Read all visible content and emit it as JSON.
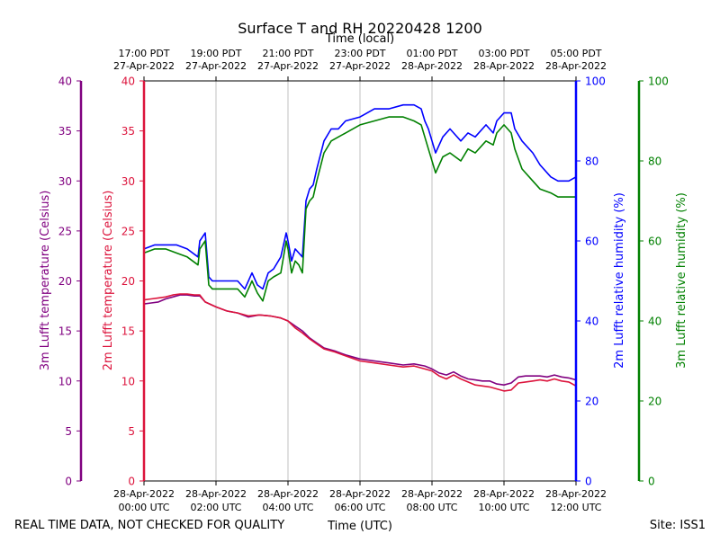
{
  "chart_data": {
    "type": "line",
    "title": "Surface T and RH 20220428 1200",
    "top_axis_label": "Time (local)",
    "xlabel": "Time (UTC)",
    "footer_left": "REAL TIME DATA, NOT CHECKED FOR QUALITY",
    "footer_right": "Site: ISS1",
    "x_range_hours": [
      0,
      12
    ],
    "bottom_ticks": [
      {
        "hour": 0,
        "line1": "28-Apr-2022",
        "line2": "00:00 UTC"
      },
      {
        "hour": 2,
        "line1": "28-Apr-2022",
        "line2": "02:00 UTC"
      },
      {
        "hour": 4,
        "line1": "28-Apr-2022",
        "line2": "04:00 UTC"
      },
      {
        "hour": 6,
        "line1": "28-Apr-2022",
        "line2": "06:00 UTC"
      },
      {
        "hour": 8,
        "line1": "28-Apr-2022",
        "line2": "08:00 UTC"
      },
      {
        "hour": 10,
        "line1": "28-Apr-2022",
        "line2": "10:00 UTC"
      },
      {
        "hour": 12,
        "line1": "28-Apr-2022",
        "line2": "12:00 UTC"
      }
    ],
    "top_ticks": [
      {
        "hour": 0,
        "line1": "17:00 PDT",
        "line2": "27-Apr-2022"
      },
      {
        "hour": 2,
        "line1": "19:00 PDT",
        "line2": "27-Apr-2022"
      },
      {
        "hour": 4,
        "line1": "21:00 PDT",
        "line2": "27-Apr-2022"
      },
      {
        "hour": 6,
        "line1": "23:00 PDT",
        "line2": "27-Apr-2022"
      },
      {
        "hour": 8,
        "line1": "01:00 PDT",
        "line2": "28-Apr-2022"
      },
      {
        "hour": 10,
        "line1": "03:00 PDT",
        "line2": "28-Apr-2022"
      },
      {
        "hour": 12,
        "line1": "05:00 PDT",
        "line2": "28-Apr-2022"
      }
    ],
    "axes": {
      "temp3m": {
        "label": "3m Lufft temperature (Celsius)",
        "color": "#800080",
        "range": [
          0,
          40
        ],
        "ticks": [
          0,
          5,
          10,
          15,
          20,
          25,
          30,
          35,
          40
        ]
      },
      "temp2m": {
        "label": "2m Lufft temperature (Celsius)",
        "color": "#dc143c",
        "range": [
          0,
          40
        ],
        "ticks": [
          0,
          5,
          10,
          15,
          20,
          25,
          30,
          35,
          40
        ]
      },
      "rh2m": {
        "label": "2m Lufft relative humidity (%)",
        "color": "#0000ff",
        "range": [
          0,
          100
        ],
        "ticks": [
          0,
          20,
          40,
          60,
          80,
          100
        ]
      },
      "rh3m": {
        "label": "3m Lufft relative humidity (%)",
        "color": "#008000",
        "range": [
          0,
          100
        ],
        "ticks": [
          0,
          20,
          40,
          60,
          80,
          100
        ]
      }
    },
    "series": [
      {
        "name": "2m Lufft relative humidity",
        "axis": "rh2m",
        "color": "#0000ff",
        "x": [
          0,
          0.3,
          0.6,
          0.9,
          1.2,
          1.5,
          1.55,
          1.7,
          1.8,
          1.9,
          2.0,
          2.3,
          2.6,
          2.8,
          3.0,
          3.15,
          3.3,
          3.45,
          3.6,
          3.8,
          3.95,
          4.0,
          4.1,
          4.2,
          4.3,
          4.4,
          4.5,
          4.6,
          4.7,
          4.8,
          5.0,
          5.2,
          5.4,
          5.6,
          6.0,
          6.4,
          6.8,
          7.2,
          7.5,
          7.7,
          7.8,
          7.9,
          8.0,
          8.1,
          8.3,
          8.5,
          8.8,
          9.0,
          9.2,
          9.5,
          9.7,
          9.8,
          10.0,
          10.2,
          10.3,
          10.5,
          10.8,
          11.0,
          11.3,
          11.5,
          11.8,
          12.0
        ],
        "values": [
          58,
          59,
          59,
          59,
          58,
          56,
          60,
          62,
          51,
          50,
          50,
          50,
          50,
          48,
          52,
          49,
          48,
          52,
          53,
          56,
          62,
          60,
          55,
          58,
          57,
          56,
          70,
          73,
          74,
          78,
          85,
          88,
          88,
          90,
          91,
          93,
          93,
          94,
          94,
          93,
          90,
          88,
          85,
          82,
          86,
          88,
          85,
          87,
          86,
          89,
          87,
          90,
          92,
          92,
          88,
          85,
          82,
          79,
          76,
          75,
          75,
          76
        ]
      },
      {
        "name": "3m Lufft relative humidity",
        "axis": "rh3m",
        "color": "#008000",
        "x": [
          0,
          0.3,
          0.6,
          0.9,
          1.2,
          1.5,
          1.55,
          1.7,
          1.8,
          1.9,
          2.0,
          2.3,
          2.6,
          2.8,
          3.0,
          3.15,
          3.3,
          3.45,
          3.6,
          3.8,
          3.95,
          4.0,
          4.1,
          4.2,
          4.3,
          4.4,
          4.5,
          4.6,
          4.7,
          4.8,
          5.0,
          5.2,
          5.4,
          5.6,
          6.0,
          6.4,
          6.8,
          7.2,
          7.5,
          7.7,
          7.8,
          7.9,
          8.0,
          8.1,
          8.3,
          8.5,
          8.8,
          9.0,
          9.2,
          9.5,
          9.7,
          9.8,
          10.0,
          10.2,
          10.3,
          10.5,
          10.8,
          11.0,
          11.3,
          11.5,
          11.8,
          12.0
        ],
        "values": [
          57,
          58,
          58,
          57,
          56,
          54,
          58,
          60,
          49,
          48,
          48,
          48,
          48,
          46,
          50,
          47,
          45,
          50,
          51,
          52,
          60,
          58,
          52,
          55,
          54,
          52,
          68,
          70,
          71,
          75,
          82,
          85,
          86,
          87,
          89,
          90,
          91,
          91,
          90,
          89,
          86,
          83,
          80,
          77,
          81,
          82,
          80,
          83,
          82,
          85,
          84,
          87,
          89,
          87,
          83,
          78,
          75,
          73,
          72,
          71,
          71,
          71
        ]
      },
      {
        "name": "3m Lufft temperature",
        "axis": "temp3m",
        "color": "#800080",
        "x": [
          0,
          0.2,
          0.4,
          0.6,
          0.8,
          1.0,
          1.2,
          1.4,
          1.55,
          1.7,
          2.0,
          2.3,
          2.6,
          2.9,
          3.2,
          3.5,
          3.8,
          4.0,
          4.2,
          4.4,
          4.6,
          4.8,
          5.0,
          5.3,
          5.6,
          6.0,
          6.4,
          6.8,
          7.2,
          7.5,
          7.8,
          8.0,
          8.2,
          8.4,
          8.6,
          8.8,
          9.0,
          9.2,
          9.4,
          9.6,
          9.8,
          10.0,
          10.2,
          10.4,
          10.6,
          10.8,
          11.0,
          11.2,
          11.4,
          11.6,
          11.8,
          12.0
        ],
        "values": [
          17.7,
          17.8,
          17.9,
          18.2,
          18.4,
          18.6,
          18.6,
          18.5,
          18.5,
          17.9,
          17.4,
          17.0,
          16.8,
          16.4,
          16.6,
          16.5,
          16.3,
          16.0,
          15.5,
          15.0,
          14.3,
          13.8,
          13.3,
          13.0,
          12.6,
          12.2,
          12.0,
          11.8,
          11.6,
          11.7,
          11.5,
          11.2,
          10.8,
          10.6,
          10.9,
          10.5,
          10.2,
          10.1,
          10.0,
          10.0,
          9.7,
          9.6,
          9.8,
          10.4,
          10.5,
          10.5,
          10.5,
          10.4,
          10.6,
          10.4,
          10.3,
          10.1
        ]
      },
      {
        "name": "2m Lufft temperature",
        "axis": "temp2m",
        "color": "#dc143c",
        "x": [
          0,
          0.2,
          0.4,
          0.6,
          0.8,
          1.0,
          1.2,
          1.4,
          1.55,
          1.7,
          2.0,
          2.3,
          2.6,
          2.9,
          3.2,
          3.5,
          3.8,
          4.0,
          4.2,
          4.4,
          4.6,
          4.8,
          5.0,
          5.3,
          5.6,
          6.0,
          6.4,
          6.8,
          7.2,
          7.5,
          7.8,
          8.0,
          8.2,
          8.4,
          8.6,
          8.8,
          9.0,
          9.2,
          9.4,
          9.6,
          9.8,
          10.0,
          10.2,
          10.4,
          10.6,
          10.8,
          11.0,
          11.2,
          11.4,
          11.6,
          11.8,
          12.0
        ],
        "values": [
          18.1,
          18.2,
          18.3,
          18.4,
          18.6,
          18.7,
          18.7,
          18.6,
          18.6,
          17.9,
          17.4,
          17.0,
          16.8,
          16.5,
          16.6,
          16.5,
          16.3,
          16.0,
          15.3,
          14.8,
          14.2,
          13.7,
          13.2,
          12.9,
          12.5,
          12.0,
          11.8,
          11.6,
          11.4,
          11.5,
          11.2,
          11.0,
          10.5,
          10.2,
          10.6,
          10.2,
          9.9,
          9.6,
          9.5,
          9.4,
          9.2,
          9.0,
          9.1,
          9.8,
          9.9,
          10.0,
          10.1,
          10.0,
          10.2,
          10.0,
          9.9,
          9.5
        ]
      }
    ]
  }
}
